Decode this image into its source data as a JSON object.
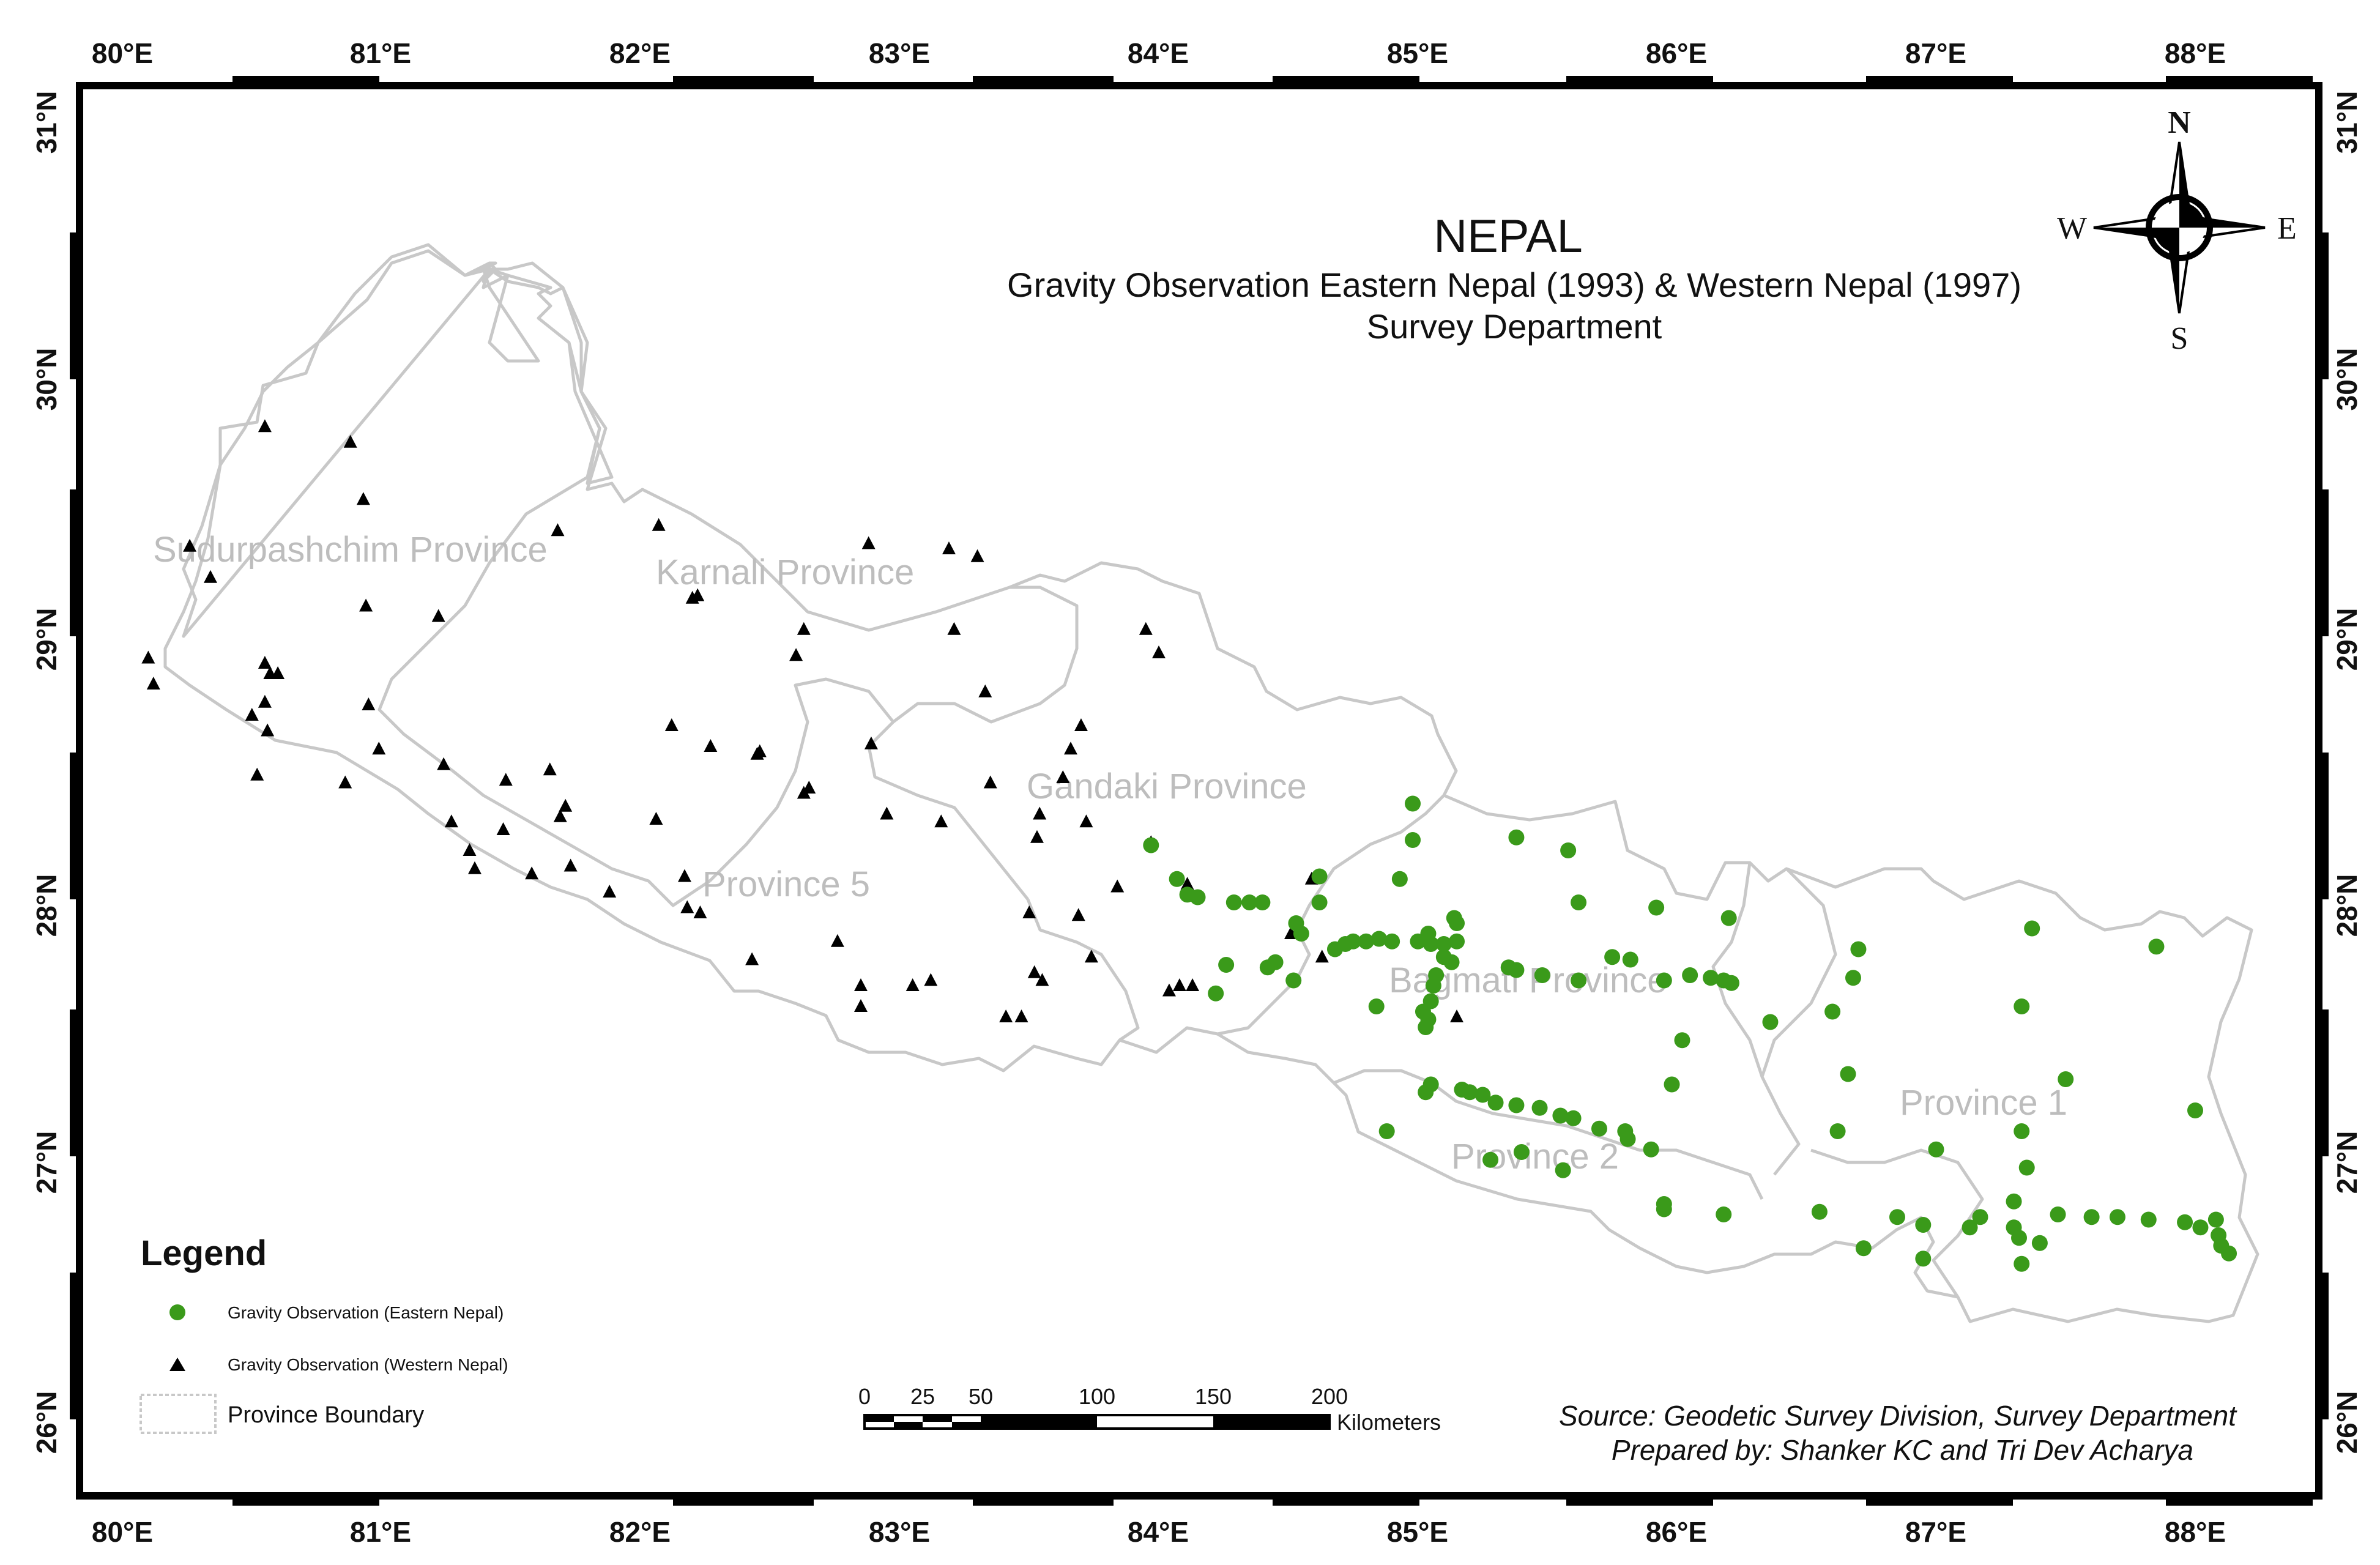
{
  "map": {
    "title": "NEPAL",
    "subtitle": "Gravity Observation Eastern Nepal (1993) & Western Nepal (1997)",
    "agency": "Survey Department",
    "lon_labels": [
      "80°E",
      "81°E",
      "82°E",
      "83°E",
      "84°E",
      "85°E",
      "86°E",
      "87°E",
      "88°E"
    ],
    "lat_labels": [
      "31°N",
      "30°N",
      "29°N",
      "28°N",
      "27°N",
      "26°N"
    ],
    "provinces": {
      "sudurpashchim": "Sudurpashchim Province",
      "karnali": "Karnali Province",
      "gandaki": "Gandaki Province",
      "province5": "Province 5",
      "bagmati": "Bagmati Province",
      "province2": "Province 2",
      "province1": "Province 1"
    },
    "compass": {
      "n": "N",
      "s": "S",
      "e": "E",
      "w": "W"
    },
    "legend": {
      "title": "Legend",
      "eastern": "Gravity Observation (Eastern Nepal)",
      "western": "Gravity Observation (Western Nepal)",
      "boundary": "Province Boundary"
    },
    "scale": {
      "ticks": [
        "0",
        "25",
        "50",
        "100",
        "150",
        "200"
      ],
      "unit": "Kilometers"
    },
    "source": "Source: Geodetic Survey Division, Survey Department",
    "prepared": "Prepared by: Shanker KC and Tri Dev Acharya",
    "colors": {
      "eastern": "#3a9a1a",
      "western": "#000000",
      "boundary": "#c8c8c8"
    }
  }
}
